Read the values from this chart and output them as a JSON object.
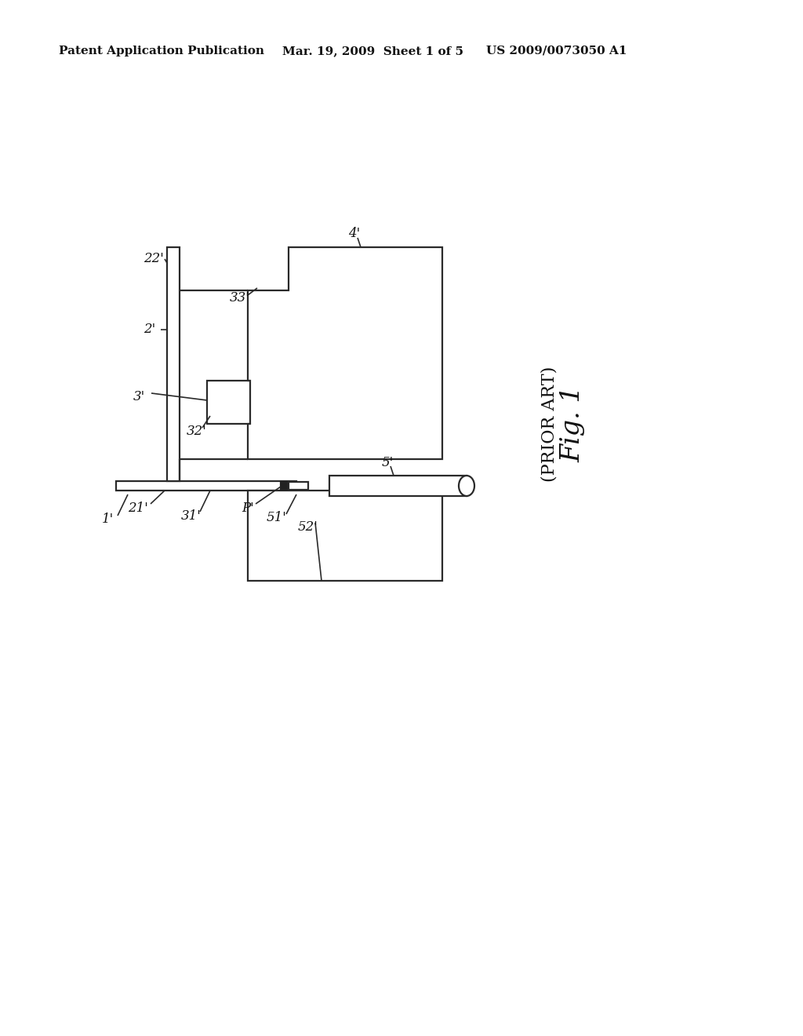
{
  "bg_color": "#ffffff",
  "line_color": "#2a2a2a",
  "header_left": "Patent Application Publication",
  "header_mid": "Mar. 19, 2009  Sheet 1 of 5",
  "header_right": "US 2009/0073050 A1",
  "fig_label": "Fig. 1",
  "fig_sublabel": "(PRIOR ART)",
  "label_1p": "1'",
  "label_2p": "2'",
  "label_3p": "3'",
  "label_4p": "4'",
  "label_5p": "5'",
  "label_21p": "21'",
  "label_22p": "22'",
  "label_31p": "31'",
  "label_32p": "32'",
  "label_33p": "33'",
  "label_51p": "51'",
  "label_52p": "52'",
  "label_Pp": "P'"
}
